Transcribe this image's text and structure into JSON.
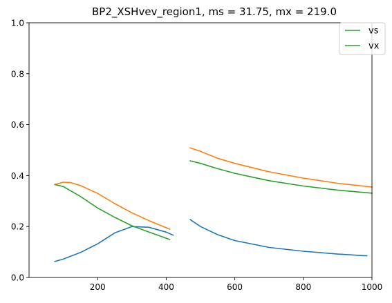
{
  "chart_data": {
    "type": "line",
    "title": "BP2_XSHvev_region1, ms = 31.75, mx = 219.0",
    "xlabel": "",
    "ylabel": "",
    "xlim": [
      0,
      1000
    ],
    "ylim": [
      0.0,
      1.0
    ],
    "x_ticks": [
      200,
      400,
      600,
      800,
      1000
    ],
    "x_tick_labels": [
      "200",
      "400",
      "600",
      "800",
      "1000"
    ],
    "y_ticks": [
      0.0,
      0.2,
      0.4,
      0.6,
      0.8,
      1.0
    ],
    "y_tick_labels": [
      "0.0",
      "0.2",
      "0.4",
      "0.6",
      "0.8",
      "1.0"
    ],
    "grid": false,
    "legend_position": "top-right",
    "legend": [
      {
        "label": "vs",
        "color": "#2ca02c"
      },
      {
        "label": "vx",
        "color": "#2ca02c"
      }
    ],
    "series": [
      {
        "color": "#1f77b4",
        "segments": [
          [
            [
              75,
              0.063
            ],
            [
              100,
              0.072
            ],
            [
              150,
              0.098
            ],
            [
              200,
              0.132
            ],
            [
              250,
              0.175
            ],
            [
              300,
              0.2
            ],
            [
              350,
              0.197
            ],
            [
              400,
              0.178
            ],
            [
              420,
              0.166
            ]
          ],
          [
            [
              470,
              0.227
            ],
            [
              500,
              0.2
            ],
            [
              550,
              0.168
            ],
            [
              600,
              0.145
            ],
            [
              700,
              0.118
            ],
            [
              800,
              0.103
            ],
            [
              900,
              0.092
            ],
            [
              985,
              0.085
            ]
          ]
        ]
      },
      {
        "color": "#ff7f0e",
        "segments": [
          [
            [
              75,
              0.365
            ],
            [
              100,
              0.374
            ],
            [
              120,
              0.373
            ],
            [
              150,
              0.361
            ],
            [
              200,
              0.33
            ],
            [
              250,
              0.29
            ],
            [
              300,
              0.254
            ],
            [
              350,
              0.223
            ],
            [
              410,
              0.19
            ]
          ],
          [
            [
              470,
              0.509
            ],
            [
              500,
              0.495
            ],
            [
              550,
              0.468
            ],
            [
              600,
              0.448
            ],
            [
              700,
              0.415
            ],
            [
              800,
              0.39
            ],
            [
              900,
              0.37
            ],
            [
              1000,
              0.355
            ]
          ]
        ]
      },
      {
        "color": "#2ca02c",
        "segments": [
          [
            [
              75,
              0.365
            ],
            [
              100,
              0.357
            ],
            [
              150,
              0.318
            ],
            [
              200,
              0.273
            ],
            [
              250,
              0.236
            ],
            [
              300,
              0.203
            ],
            [
              350,
              0.178
            ],
            [
              410,
              0.149
            ]
          ],
          [
            [
              470,
              0.458
            ],
            [
              500,
              0.448
            ],
            [
              550,
              0.427
            ],
            [
              600,
              0.409
            ],
            [
              700,
              0.38
            ],
            [
              800,
              0.359
            ],
            [
              900,
              0.343
            ],
            [
              1000,
              0.331
            ]
          ]
        ]
      }
    ]
  }
}
